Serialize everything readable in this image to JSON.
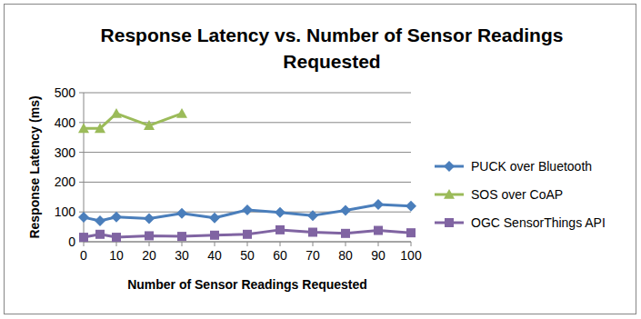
{
  "chart_data": {
    "type": "line",
    "title": "Response Latency vs. Number of Sensor Readings Requested",
    "x_label": "Number of Sensor Readings Requested",
    "y_label": "Response Latency (ms)",
    "x": [
      0,
      5,
      10,
      20,
      30,
      40,
      50,
      60,
      70,
      80,
      90,
      100
    ],
    "series": [
      {
        "name": "PUCK over Bluetooth",
        "color": "#4a7ebb",
        "marker": "diamond",
        "values": [
          82,
          70,
          83,
          78,
          95,
          80,
          107,
          98,
          88,
          105,
          125,
          120
        ]
      },
      {
        "name": "SOS over CoAP",
        "color": "#9bbb59",
        "marker": "triangle",
        "values": [
          380,
          380,
          430,
          390,
          430,
          null,
          null,
          null,
          null,
          null,
          null,
          null
        ]
      },
      {
        "name": "OGC SensorThings API",
        "color": "#8064a2",
        "marker": "square",
        "values": [
          15,
          25,
          15,
          20,
          18,
          22,
          25,
          40,
          32,
          28,
          38,
          30
        ]
      }
    ],
    "xlim": [
      0,
      100
    ],
    "xticks": [
      0,
      10,
      20,
      30,
      40,
      50,
      60,
      70,
      80,
      90,
      100
    ],
    "ylim": [
      0,
      500
    ],
    "yticks": [
      0,
      100,
      200,
      300,
      400,
      500
    ],
    "grid": true,
    "legend": "right"
  }
}
